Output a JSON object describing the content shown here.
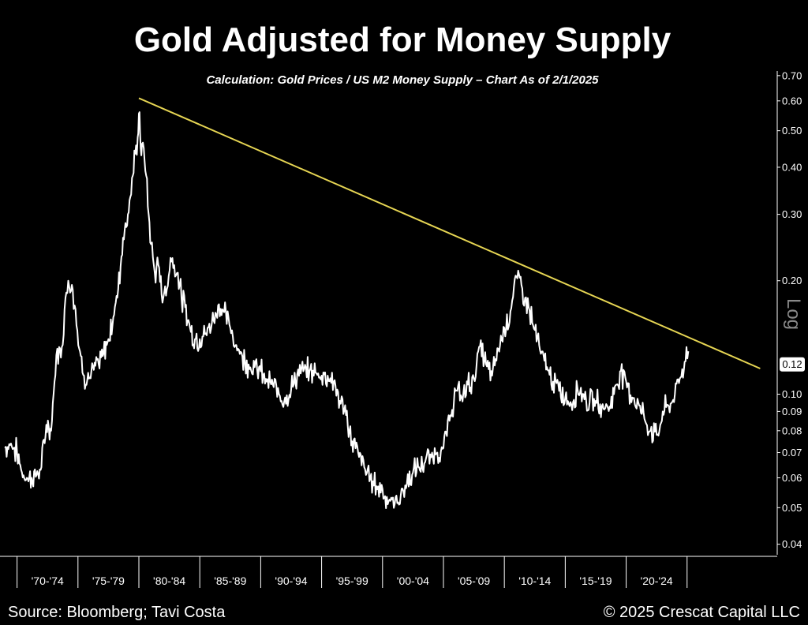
{
  "chart_data": {
    "type": "line",
    "title": "Gold Adjusted for Money Supply",
    "subtitle": "Calculation: Gold Prices / US M2 Money Supply – Chart As of 2/1/2025",
    "ylabel": "Log",
    "yscale": "log",
    "ylim": [
      0.0375,
      0.72
    ],
    "xlim": [
      1968.6,
      2032.4
    ],
    "y_ticks": [
      "0.70",
      "0.60",
      "0.50",
      "0.40",
      "0.30",
      "0.20",
      "0.12",
      "0.10",
      "0.09",
      "0.08",
      "0.07",
      "0.06",
      "0.05",
      "0.04"
    ],
    "y_tick_values": [
      0.7,
      0.6,
      0.5,
      0.4,
      0.3,
      0.2,
      0.12,
      0.1,
      0.09,
      0.08,
      0.07,
      0.06,
      0.05,
      0.04
    ],
    "current_value_label": "0.12",
    "x_tick_labels": [
      "'70-'74",
      "'75-'79",
      "'80-'84",
      "'85-'89",
      "'90-'94",
      "'95-'99",
      "'00-'04",
      "'05-'09",
      "'10-'14",
      "'15-'19",
      "'20-'24"
    ],
    "x_boundaries": [
      1970,
      1975,
      1980,
      1985,
      1990,
      1995,
      2000,
      2005,
      2010,
      2015,
      2020,
      2025
    ],
    "series": [
      {
        "name": "Gold / US M2",
        "color": "#ffffff",
        "x": [
          1969.0,
          1969.5,
          1970.0,
          1970.4,
          1970.8,
          1971.2,
          1971.6,
          1972.0,
          1972.4,
          1972.8,
          1973.0,
          1973.3,
          1973.6,
          1973.9,
          1974.2,
          1974.5,
          1974.8,
          1975.1,
          1975.5,
          1975.9,
          1976.3,
          1976.7,
          1977.1,
          1977.5,
          1977.9,
          1978.3,
          1978.7,
          1979.1,
          1979.5,
          1979.9,
          1980.05,
          1980.2,
          1980.4,
          1980.6,
          1980.8,
          1981.0,
          1981.3,
          1981.6,
          1982.0,
          1982.3,
          1982.6,
          1982.9,
          1983.2,
          1983.5,
          1983.8,
          1984.2,
          1984.6,
          1985.0,
          1985.5,
          1986.0,
          1986.5,
          1987.0,
          1987.5,
          1988.0,
          1988.5,
          1989.0,
          1989.5,
          1990.0,
          1990.5,
          1991.0,
          1991.5,
          1992.0,
          1992.5,
          1993.0,
          1993.5,
          1994.0,
          1994.5,
          1995.0,
          1995.5,
          1996.0,
          1996.5,
          1997.0,
          1997.5,
          1998.0,
          1998.5,
          1999.0,
          1999.5,
          2000.0,
          2000.5,
          2001.0,
          2001.5,
          2002.0,
          2002.5,
          2003.0,
          2003.5,
          2004.0,
          2004.5,
          2005.0,
          2005.5,
          2006.0,
          2006.5,
          2007.0,
          2007.5,
          2008.0,
          2008.5,
          2009.0,
          2009.5,
          2010.0,
          2010.5,
          2011.0,
          2011.4,
          2011.7,
          2012.0,
          2012.5,
          2013.0,
          2013.5,
          2014.0,
          2014.5,
          2015.0,
          2015.5,
          2016.0,
          2016.5,
          2017.0,
          2017.5,
          2018.0,
          2018.5,
          2019.0,
          2019.5,
          2020.0,
          2020.5,
          2021.0,
          2021.5,
          2022.0,
          2022.5,
          2022.8,
          2023.0,
          2023.5,
          2024.0,
          2024.4,
          2024.8,
          2025.1
        ],
        "values": [
          0.072,
          0.074,
          0.07,
          0.062,
          0.06,
          0.06,
          0.061,
          0.064,
          0.083,
          0.08,
          0.1,
          0.132,
          0.125,
          0.168,
          0.2,
          0.195,
          0.168,
          0.132,
          0.112,
          0.11,
          0.116,
          0.12,
          0.128,
          0.14,
          0.16,
          0.19,
          0.26,
          0.3,
          0.38,
          0.48,
          0.56,
          0.43,
          0.45,
          0.38,
          0.3,
          0.25,
          0.21,
          0.22,
          0.18,
          0.19,
          0.23,
          0.22,
          0.21,
          0.18,
          0.17,
          0.15,
          0.14,
          0.14,
          0.145,
          0.155,
          0.172,
          0.165,
          0.15,
          0.135,
          0.126,
          0.12,
          0.118,
          0.115,
          0.108,
          0.106,
          0.1,
          0.098,
          0.103,
          0.113,
          0.115,
          0.115,
          0.114,
          0.112,
          0.112,
          0.108,
          0.096,
          0.088,
          0.075,
          0.07,
          0.064,
          0.06,
          0.057,
          0.056,
          0.052,
          0.051,
          0.054,
          0.058,
          0.062,
          0.064,
          0.066,
          0.068,
          0.07,
          0.072,
          0.085,
          0.102,
          0.098,
          0.106,
          0.11,
          0.134,
          0.12,
          0.112,
          0.132,
          0.15,
          0.166,
          0.205,
          0.195,
          0.18,
          0.17,
          0.148,
          0.128,
          0.118,
          0.108,
          0.102,
          0.098,
          0.094,
          0.104,
          0.1,
          0.095,
          0.096,
          0.093,
          0.092,
          0.1,
          0.115,
          0.108,
          0.098,
          0.095,
          0.086,
          0.08,
          0.078,
          0.083,
          0.09,
          0.093,
          0.1,
          0.11,
          0.122,
          0.13
        ]
      }
    ],
    "trendline": {
      "color": "#e6d553",
      "x": [
        1980.0,
        2031.0
      ],
      "values": [
        0.61,
        0.117
      ]
    }
  },
  "footer": {
    "source": "Source: Bloomberg; Tavi Costa",
    "copyright": "© 2025 Crescat Capital LLC"
  }
}
